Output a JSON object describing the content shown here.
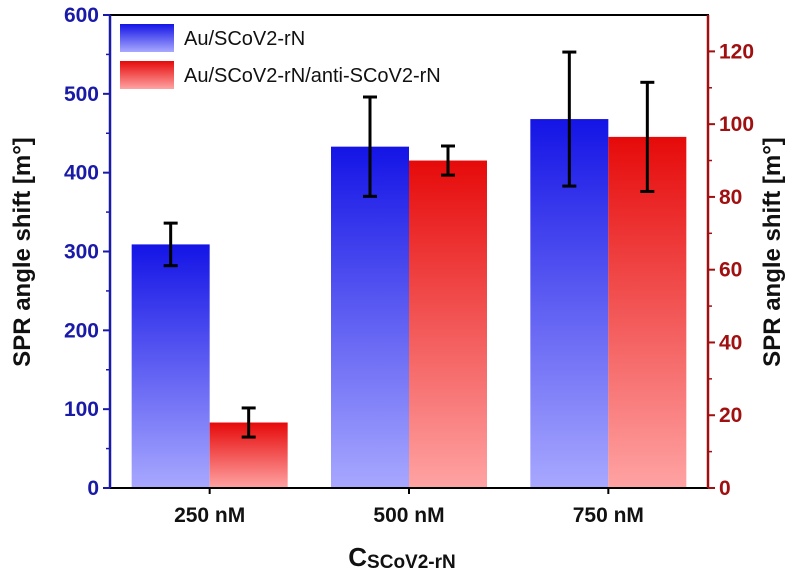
{
  "chart_data": {
    "type": "bar",
    "categories": [
      "250 nM",
      "500 nM",
      "750 nM"
    ],
    "xlabel_main": "C",
    "xlabel_sub": "SCoV2-rN",
    "left_axis": {
      "label": "SPR angle shift [m°]",
      "range": [
        0,
        600
      ],
      "ticks": [
        0,
        100,
        200,
        300,
        400,
        500,
        600
      ],
      "color": "#1a1aa8"
    },
    "right_axis": {
      "label": "SPR angle shift [m°]",
      "range": [
        0,
        130
      ],
      "ticks": [
        0,
        20,
        40,
        60,
        80,
        100,
        120
      ],
      "color": "#a01010"
    },
    "series": [
      {
        "name": "Au/SCoV2-rN",
        "axis": "left",
        "values": [
          309,
          433,
          468
        ],
        "errors": [
          27,
          63,
          85
        ],
        "color_top": "#1414e6",
        "color_bottom": "#a8a8ff"
      },
      {
        "name": "Au/SCoV2-rN/anti-SCoV2-rN",
        "axis": "right",
        "values": [
          18,
          90,
          96.5
        ],
        "errors": [
          4,
          4,
          15
        ],
        "color_top": "#e60a0a",
        "color_bottom": "#ffa3a3"
      }
    ],
    "legend_position": "top-left"
  }
}
